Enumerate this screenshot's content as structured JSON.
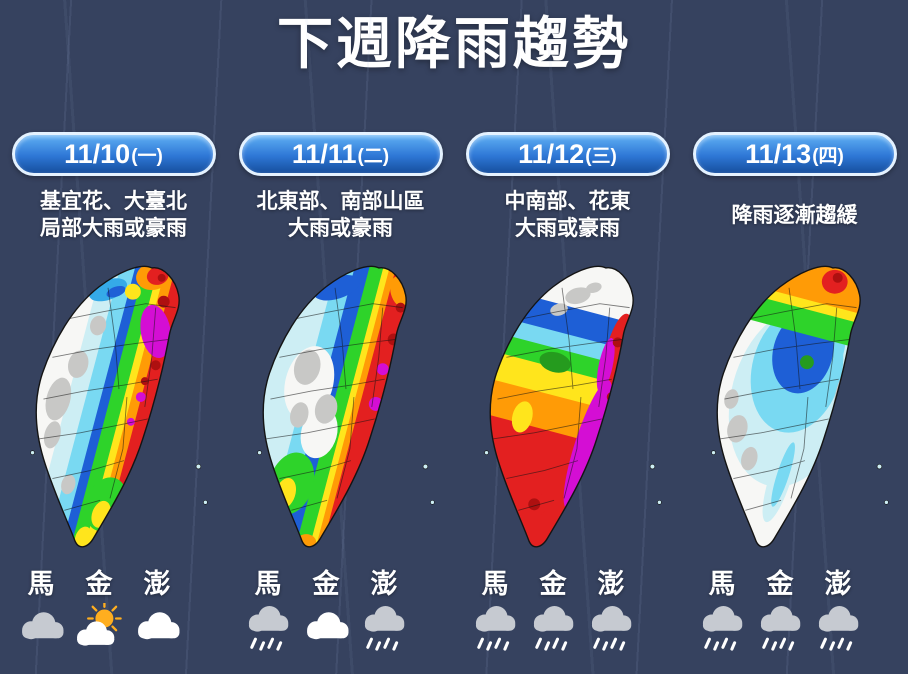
{
  "title": "下週降雨趨勢",
  "theme": {
    "bg": "#36425f",
    "pill-top": "#5fb0f4",
    "pill-mid": "#2e77d6",
    "pill-bottom": "#164f9e",
    "pill-border": "#e4f2ff",
    "text": "#ffffff"
  },
  "palette": {
    "white": "#f7f7f5",
    "gray": "#c8c8c6",
    "paleCyan": "#cdeef4",
    "cyan": "#79d9f2",
    "skyBlue": "#35aae8",
    "blue": "#1e5fd6",
    "green": "#2ed32a",
    "darkGreen": "#259b1e",
    "yellow": "#ffe51c",
    "orange": "#ff9b06",
    "red": "#e32020",
    "darkRed": "#ae1010",
    "magenta": "#d40ed4",
    "outline": "#141414",
    "sun": "#ffae1f",
    "cloud_gray": "#c6cad1",
    "cloud_white": "#ffffff"
  },
  "days": [
    {
      "date": "11/10",
      "weekday": "(一)",
      "desc_line1": "基宜花、大臺北",
      "desc_line2": "局部大雨或豪雨",
      "islands": [
        {
          "name": "馬",
          "icon": "cloudy-gray"
        },
        {
          "name": "金",
          "icon": "partly-sunny"
        },
        {
          "name": "澎",
          "icon": "cloudy-white"
        }
      ]
    },
    {
      "date": "11/11",
      "weekday": "(二)",
      "desc_line1": "北東部、南部山區",
      "desc_line2": "大雨或豪雨",
      "islands": [
        {
          "name": "馬",
          "icon": "rain"
        },
        {
          "name": "金",
          "icon": "cloudy-white"
        },
        {
          "name": "澎",
          "icon": "rain"
        }
      ]
    },
    {
      "date": "11/12",
      "weekday": "(三)",
      "desc_line1": "中南部、花東",
      "desc_line2": "大雨或豪雨",
      "islands": [
        {
          "name": "馬",
          "icon": "rain"
        },
        {
          "name": "金",
          "icon": "rain"
        },
        {
          "name": "澎",
          "icon": "rain"
        }
      ]
    },
    {
      "date": "11/13",
      "weekday": "(四)",
      "desc_line1": "降雨逐漸趨緩",
      "desc_line2": "",
      "islands": [
        {
          "name": "馬",
          "icon": "rain"
        },
        {
          "name": "金",
          "icon": "rain"
        },
        {
          "name": "澎",
          "icon": "rain"
        }
      ]
    }
  ]
}
